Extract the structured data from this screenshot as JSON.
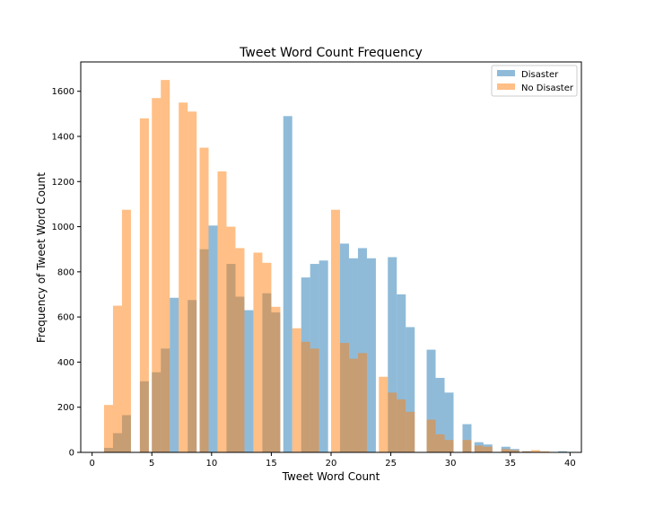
{
  "chart_data": {
    "type": "bar",
    "title": "Tweet Word Count Frequency",
    "xlabel": "Tweet Word Count",
    "ylabel": "Frequency of Tweet Word Count",
    "xlim": [
      -0.95,
      40.95
    ],
    "ylim": [
      0,
      1730
    ],
    "xticks": [
      0,
      5,
      10,
      15,
      20,
      25,
      30,
      35,
      40
    ],
    "yticks": [
      0,
      200,
      400,
      600,
      800,
      1000,
      1200,
      1400,
      1600
    ],
    "bin_width": 0.75,
    "legend_position": "top-right",
    "grid": false,
    "series": [
      {
        "name": "Disaster",
        "color": "#1f77b4",
        "alpha": 0.5,
        "x": [
          1.0,
          1.75,
          2.5,
          3.25,
          4.0,
          5.0,
          5.75,
          6.5,
          7.25,
          8.0,
          9.0,
          9.75,
          10.5,
          11.25,
          12.0,
          12.75,
          13.5,
          14.25,
          15.0,
          16.0,
          16.75,
          17.5,
          18.25,
          19.0,
          20.0,
          20.75,
          21.5,
          22.25,
          23.0,
          24.0,
          24.75,
          25.5,
          26.25,
          27.0,
          28.0,
          28.75,
          29.5,
          30.25,
          31.0,
          32.0,
          32.75,
          33.5,
          34.25,
          35.0,
          36.0,
          36.75,
          37.5,
          38.25,
          39.0
        ],
        "values": [
          20,
          85,
          165,
          0,
          315,
          355,
          460,
          685,
          0,
          675,
          900,
          1005,
          0,
          835,
          690,
          630,
          0,
          705,
          620,
          1490,
          0,
          775,
          835,
          850,
          0,
          925,
          860,
          905,
          860,
          0,
          865,
          700,
          555,
          0,
          455,
          330,
          265,
          0,
          125,
          45,
          35,
          0,
          25,
          15,
          5,
          0,
          0,
          0,
          5
        ]
      },
      {
        "name": "No Disaster",
        "color": "#ff7f0e",
        "alpha": 0.5,
        "x": [
          1.0,
          1.75,
          2.5,
          3.25,
          4.0,
          5.0,
          5.75,
          6.5,
          7.25,
          8.0,
          9.0,
          9.75,
          10.5,
          11.25,
          12.0,
          12.75,
          13.5,
          14.25,
          15.0,
          16.0,
          16.75,
          17.5,
          18.25,
          19.0,
          20.0,
          20.75,
          21.5,
          22.25,
          23.0,
          24.0,
          24.75,
          25.5,
          26.25,
          27.0,
          28.0,
          28.75,
          29.5,
          30.25,
          31.0,
          32.0,
          32.75,
          33.5,
          34.25,
          35.0,
          36.0,
          36.75,
          37.5,
          38.25,
          39.0
        ],
        "values": [
          210,
          650,
          1075,
          0,
          1480,
          1570,
          1650,
          0,
          1550,
          1510,
          1350,
          0,
          1245,
          1000,
          905,
          0,
          885,
          840,
          645,
          0,
          550,
          490,
          460,
          0,
          1075,
          485,
          415,
          440,
          0,
          335,
          265,
          235,
          180,
          0,
          145,
          80,
          55,
          0,
          55,
          30,
          25,
          0,
          15,
          10,
          5,
          10,
          5,
          0,
          0
        ]
      }
    ]
  }
}
